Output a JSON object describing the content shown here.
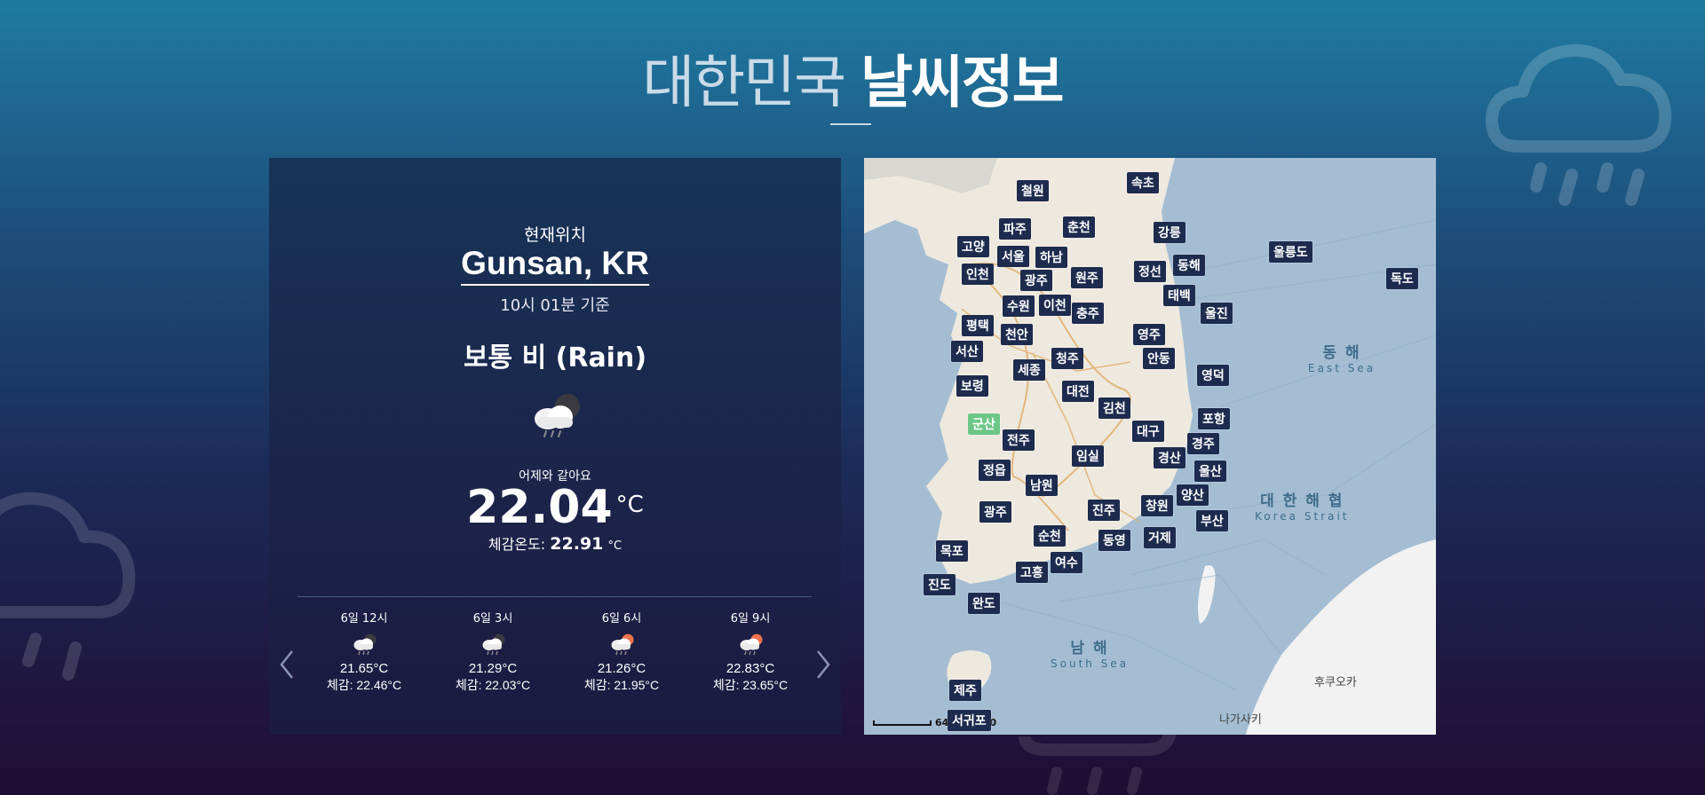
{
  "header": {
    "title_light": "대한민국",
    "title_bold": "날씨정보"
  },
  "current": {
    "location_caption": "현재위치",
    "city": "Gunsan, KR",
    "base_time": "10시 01분 기준",
    "condition": "보통 비 (Rain)",
    "weather_icon": "rain-cloud-night-icon",
    "compare_text": "어제와 같아요",
    "temperature": "22.04",
    "unit": "°C",
    "feels_label": "체감온도:",
    "feels_value": "22.91",
    "feels_unit": "°C"
  },
  "forecast": [
    {
      "time": "6일 12시",
      "icon": "rain-cloud-night-icon",
      "temp": "21.65°C",
      "feels": "체감: 22.46°C"
    },
    {
      "time": "6일 3시",
      "icon": "rain-cloud-night-icon",
      "temp": "21.29°C",
      "feels": "체감: 22.03°C"
    },
    {
      "time": "6일 6시",
      "icon": "rain-cloud-sun-icon",
      "temp": "21.26°C",
      "feels": "체감: 21.95°C"
    },
    {
      "time": "6일 9시",
      "icon": "rain-cloud-sun-icon",
      "temp": "22.83°C",
      "feels": "체감: 23.65°C"
    }
  ],
  "map": {
    "sea_east_kr": "동 해",
    "sea_east_en": "East Sea",
    "strait_kr": "대 한 해 협",
    "strait_en": "Korea Strait",
    "sea_south_kr": "남 해",
    "sea_south_en": "South Sea",
    "fukuoka": "후쿠오카",
    "nagasaki": "나가사키",
    "scale_label": "64 km 1:80",
    "active_city": "군산",
    "cities": [
      "속초",
      "철원",
      "파주",
      "춘천",
      "강릉",
      "고양",
      "서울",
      "하남",
      "울릉도",
      "독도",
      "인천",
      "광주",
      "원주",
      "정선",
      "동해",
      "수원",
      "이천",
      "충주",
      "태백",
      "평택",
      "천안",
      "울진",
      "영주",
      "서산",
      "청주",
      "안동",
      "세종",
      "영덕",
      "대전",
      "보령",
      "김천",
      "포항",
      "군산",
      "대구",
      "전주",
      "경주",
      "임실",
      "경산",
      "정읍",
      "울산",
      "남원",
      "양산",
      "광주",
      "진주",
      "창원",
      "부산",
      "순천",
      "동영",
      "거제",
      "목포",
      "여수",
      "고흥",
      "진도",
      "완도",
      "제주",
      "서귀포"
    ]
  }
}
